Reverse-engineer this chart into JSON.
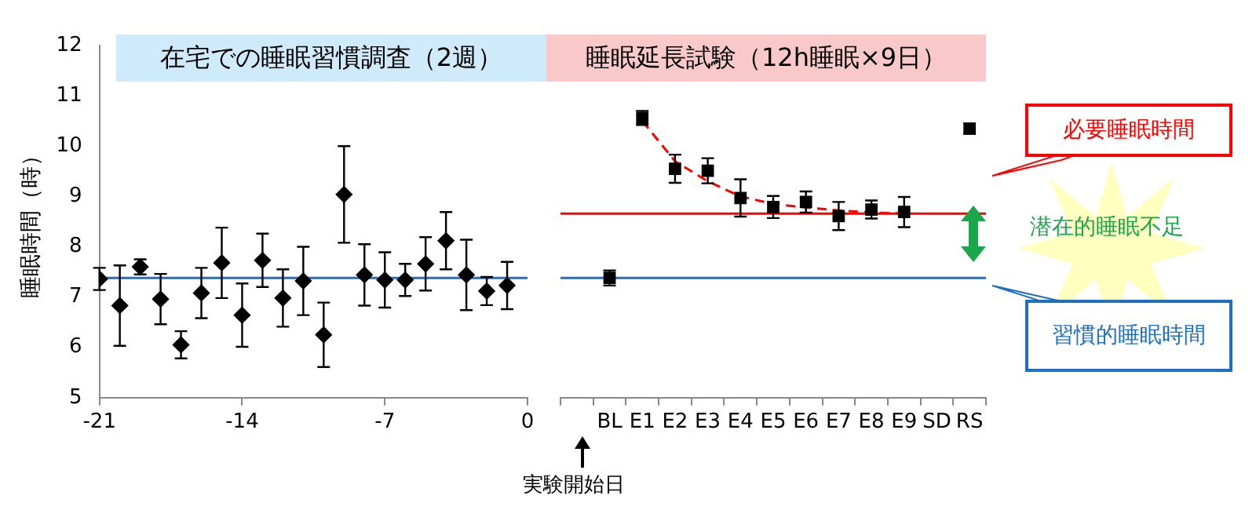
{
  "chart_data": [
    {
      "type": "scatter",
      "title": "在宅での睡眠習慣調査（2週）",
      "ylabel": "睡眠時間（時）",
      "marker": "diamond",
      "x": [
        -21,
        -20,
        -19,
        -18,
        -17,
        -16,
        -15,
        -14,
        -13,
        -12,
        -11,
        -10,
        -9,
        -8,
        -7,
        -6,
        -5,
        -4,
        -3,
        -2,
        -1
      ],
      "series": [
        {
          "color": "#000000",
          "values": [
            7.36,
            6.83,
            7.6,
            6.96,
            6.05,
            7.08,
            7.68,
            6.64,
            7.73,
            6.98,
            7.32,
            6.25,
            9.04,
            7.44,
            7.34,
            7.34,
            7.66,
            8.12,
            7.44,
            7.12,
            7.23
          ],
          "errors": [
            0.22,
            0.8,
            0.15,
            0.5,
            0.27,
            0.5,
            0.7,
            0.63,
            0.53,
            0.57,
            0.68,
            0.64,
            0.96,
            0.61,
            0.55,
            0.32,
            0.53,
            0.57,
            0.7,
            0.28,
            0.47
          ]
        }
      ],
      "xlim": [
        -21,
        0
      ],
      "xticks": [
        -21,
        -14,
        -7,
        0
      ],
      "ylim": [
        5,
        12
      ],
      "yticks": [
        5,
        6,
        7,
        8,
        9,
        10,
        11,
        12
      ],
      "ref_lines": [
        {
          "axis": "y",
          "value": 7.38,
          "color": "#1f6fc0"
        }
      ]
    },
    {
      "type": "scatter",
      "title": "睡眠延長試験（12h睡眠×9日）",
      "marker": "square",
      "categories": [
        null,
        "BL",
        "E1",
        "E2",
        "E3",
        "E4",
        "E5",
        "E6",
        "E7",
        "E8",
        "E9",
        "SD",
        "RS"
      ],
      "series": [
        {
          "color": "#000000",
          "values": [
            null,
            7.38,
            10.56,
            9.55,
            9.51,
            8.97,
            8.79,
            8.89,
            8.61,
            8.74,
            8.69,
            null,
            10.35
          ],
          "errors": [
            null,
            0.15,
            0.14,
            0.28,
            0.25,
            0.37,
            0.22,
            0.21,
            0.28,
            0.18,
            0.3,
            null,
            0.1
          ]
        },
        {
          "type": "line",
          "color": "#ff0000",
          "line_style": "dashed",
          "marker": "none",
          "values": [
            null,
            null,
            10.5,
            9.7,
            9.3,
            9.0,
            8.85,
            8.78,
            8.72,
            8.68,
            8.66,
            null,
            null
          ]
        }
      ],
      "ylim": [
        5,
        12
      ],
      "yticks": [
        5,
        6,
        7,
        8,
        9,
        10,
        11,
        12
      ],
      "tick_labels": "x",
      "ref_lines": [
        {
          "axis": "y",
          "value": 8.66,
          "color": "#ff0000",
          "label": "必要睡眠時間"
        },
        {
          "axis": "y",
          "value": 7.38,
          "color": "#1f6fc0",
          "label": "習慣的睡眠時間"
        }
      ],
      "annotations": [
        "潜在的睡眠不足",
        "実験開始日"
      ]
    }
  ]
}
